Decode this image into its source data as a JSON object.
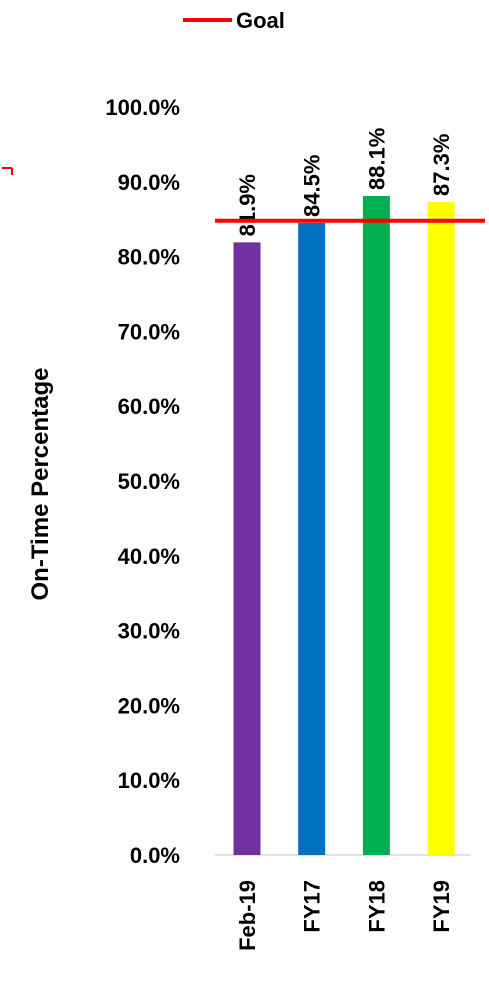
{
  "chart_data": {
    "type": "bar",
    "categories": [
      "Feb-19",
      "FY17",
      "FY18",
      "FY19"
    ],
    "values": [
      81.9,
      84.5,
      88.1,
      87.3
    ],
    "value_labels": [
      "81.9%",
      "84.5%",
      "88.1%",
      "87.3%"
    ],
    "bar_colors": [
      "#7030A0",
      "#0070C0",
      "#00B050",
      "#FFFF00"
    ],
    "goal": 84.8,
    "goal_color": "#FF0000",
    "legend": {
      "label": "Goal",
      "position": "top"
    },
    "ylabel": "On-Time Percentage",
    "ylim": [
      0,
      100
    ],
    "yticks": [
      0,
      10,
      20,
      30,
      40,
      50,
      60,
      70,
      80,
      90,
      100
    ],
    "ytick_labels": [
      "0.0%",
      "10.0%",
      "20.0%",
      "30.0%",
      "40.0%",
      "50.0%",
      "60.0%",
      "70.0%",
      "80.0%",
      "90.0%",
      "100.0%"
    ],
    "grid": false,
    "text_color": "#000000",
    "axis_color": "#D9D9D9"
  }
}
